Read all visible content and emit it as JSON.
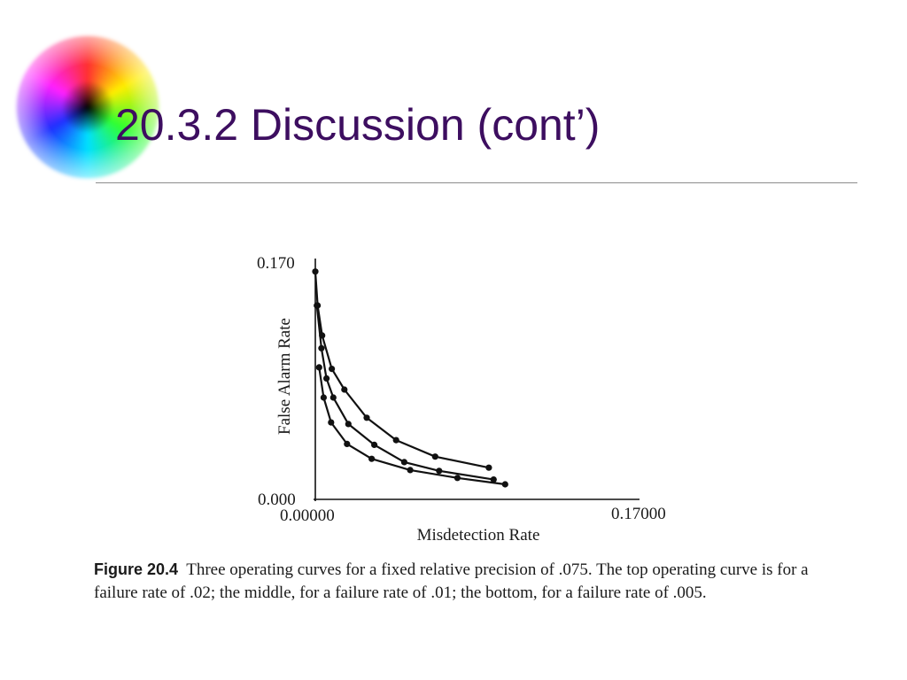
{
  "slide": {
    "title": "20.3.2 Discussion (cont’)"
  },
  "figure": {
    "label": "Figure 20.4",
    "caption": "Three operating curves for a fixed relative precision of .075. The top operating curve is for a failure rate of .02; the middle, for a failure rate of .01; the bottom, for a failure rate of .005."
  },
  "chart_data": {
    "type": "line",
    "xlabel": "Misdetection Rate",
    "ylabel": "False Alarm Rate",
    "xlim": [
      0,
      0.17
    ],
    "ylim": [
      0,
      0.17
    ],
    "x_tick_labels": [
      "0.00000",
      "0.17000"
    ],
    "y_tick_labels": [
      "0.000",
      "0.170"
    ],
    "grid": false,
    "legend": "none",
    "color": "#111111",
    "series": [
      {
        "points": [
          [
            0.0,
            0.1608
          ],
          [
            0.0012,
            0.1369
          ],
          [
            0.0036,
            0.1157
          ],
          [
            0.0087,
            0.0921
          ],
          [
            0.0153,
            0.0775
          ],
          [
            0.0271,
            0.0576
          ],
          [
            0.0426,
            0.0418
          ],
          [
            0.0632,
            0.0302
          ],
          [
            0.0915,
            0.0224
          ]
        ]
      },
      {
        "points": [
          [
            0.0008,
            0.1369
          ],
          [
            0.0032,
            0.1067
          ],
          [
            0.0059,
            0.0854
          ],
          [
            0.0095,
            0.0719
          ],
          [
            0.0174,
            0.0532
          ],
          [
            0.0311,
            0.0385
          ],
          [
            0.0469,
            0.0263
          ],
          [
            0.0653,
            0.0201
          ],
          [
            0.094,
            0.014
          ]
        ]
      },
      {
        "points": [
          [
            0.002,
            0.0932
          ],
          [
            0.0044,
            0.0719
          ],
          [
            0.0083,
            0.0543
          ],
          [
            0.0167,
            0.0391
          ],
          [
            0.0297,
            0.0286
          ],
          [
            0.05,
            0.0207
          ],
          [
            0.0749,
            0.0151
          ],
          [
            0.1001,
            0.0106
          ]
        ]
      }
    ]
  }
}
